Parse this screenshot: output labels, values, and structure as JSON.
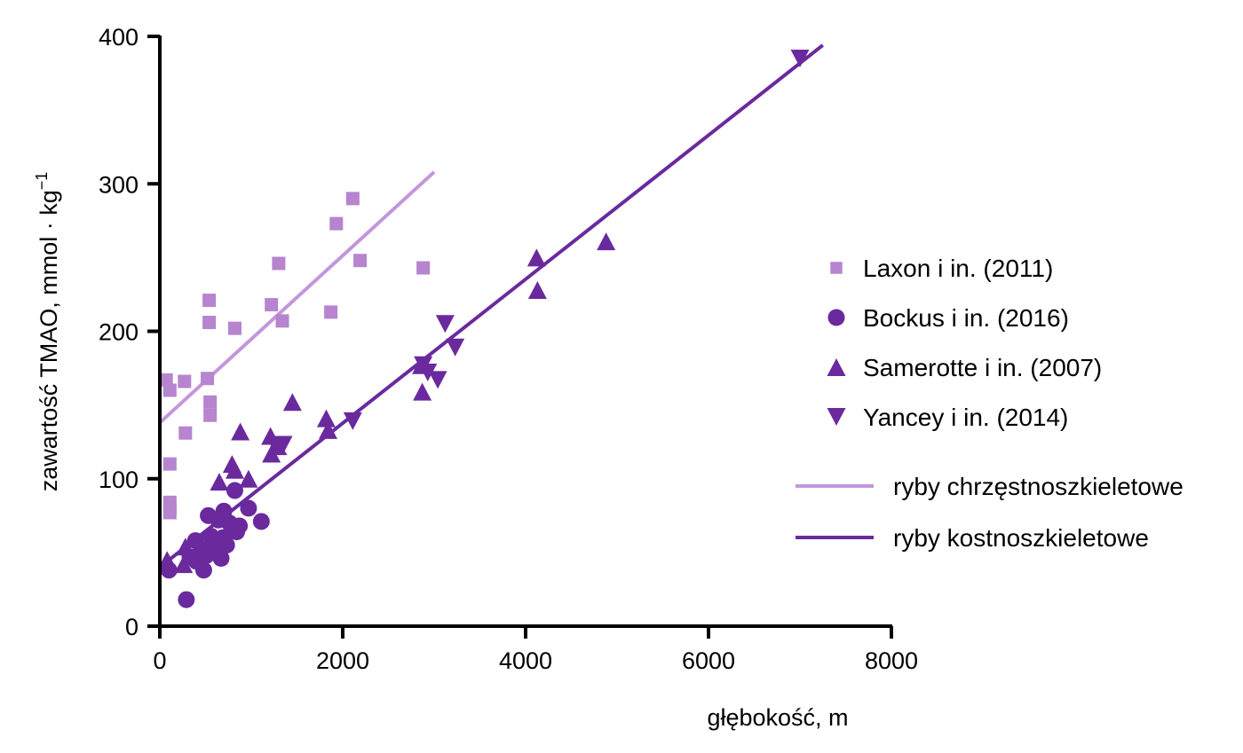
{
  "chart_data": {
    "type": "scatter",
    "xlabel": "głębokość, m",
    "ylabel": {
      "main": "zawartość TMAO, mmol · kg",
      "superscript": "−1"
    },
    "xlim": [
      0,
      8000
    ],
    "ylim": [
      0,
      400
    ],
    "xticks": [
      "0",
      "2000",
      "4000",
      "6000",
      "8000"
    ],
    "yticks": [
      "0",
      "100",
      "200",
      "300",
      "400"
    ],
    "grid": false,
    "legend_position": "right",
    "series": [
      {
        "name": "Laxon i in. (2011)",
        "marker": "square",
        "color": "#b784d0",
        "points": [
          [
            70,
            167
          ],
          [
            110,
            160
          ],
          [
            110,
            110
          ],
          [
            110,
            84
          ],
          [
            110,
            80
          ],
          [
            110,
            77
          ],
          [
            270,
            166
          ],
          [
            280,
            131
          ],
          [
            520,
            168
          ],
          [
            540,
            221
          ],
          [
            540,
            206
          ],
          [
            550,
            152
          ],
          [
            550,
            143
          ],
          [
            820,
            202
          ],
          [
            1220,
            218
          ],
          [
            1300,
            246
          ],
          [
            1340,
            207
          ],
          [
            1870,
            213
          ],
          [
            1930,
            273
          ],
          [
            2110,
            290
          ],
          [
            2190,
            248
          ],
          [
            2880,
            243
          ]
        ]
      },
      {
        "name": "Bockus i in. (2016)",
        "marker": "circle",
        "color": "#6a2a9e",
        "points": [
          [
            100,
            38
          ],
          [
            290,
            18
          ],
          [
            330,
            47
          ],
          [
            390,
            58
          ],
          [
            400,
            44
          ],
          [
            460,
            52
          ],
          [
            480,
            38
          ],
          [
            510,
            48
          ],
          [
            530,
            75
          ],
          [
            560,
            61
          ],
          [
            580,
            55
          ],
          [
            620,
            50
          ],
          [
            640,
            72
          ],
          [
            670,
            46
          ],
          [
            690,
            60
          ],
          [
            700,
            78
          ],
          [
            730,
            55
          ],
          [
            760,
            70
          ],
          [
            800,
            66
          ],
          [
            820,
            92
          ],
          [
            840,
            64
          ],
          [
            870,
            68
          ],
          [
            970,
            80
          ],
          [
            1110,
            71
          ]
        ]
      },
      {
        "name": "Samerotte i in. (2007)",
        "marker": "triangle-up",
        "color": "#6a2a9e",
        "points": [
          [
            80,
            45
          ],
          [
            260,
            42
          ],
          [
            280,
            54
          ],
          [
            650,
            98
          ],
          [
            790,
            110
          ],
          [
            820,
            106
          ],
          [
            880,
            132
          ],
          [
            970,
            100
          ],
          [
            1210,
            129
          ],
          [
            1220,
            117
          ],
          [
            1290,
            122
          ],
          [
            1450,
            152
          ],
          [
            1820,
            141
          ],
          [
            1840,
            133
          ],
          [
            2860,
            177
          ],
          [
            2870,
            159
          ],
          [
            4120,
            250
          ],
          [
            4130,
            228
          ],
          [
            4880,
            261
          ]
        ]
      },
      {
        "name": "Yancey i in. (2014)",
        "marker": "triangle-down",
        "color": "#6a2a9e",
        "points": [
          [
            1260,
            123
          ],
          [
            1350,
            123
          ],
          [
            2110,
            139
          ],
          [
            2880,
            177
          ],
          [
            2930,
            172
          ],
          [
            3040,
            167
          ],
          [
            3120,
            205
          ],
          [
            3230,
            189
          ],
          [
            7000,
            385
          ]
        ]
      }
    ],
    "fit_lines": [
      {
        "name": "ryby chrzęstnoszkieletowe",
        "color": "#c396dc",
        "x": [
          0,
          3000
        ],
        "y": [
          138,
          308
        ]
      },
      {
        "name": "ryby kostnoszkieletowe",
        "color": "#6a2a9e",
        "x": [
          0,
          7250
        ],
        "y": [
          40,
          394
        ]
      }
    ]
  }
}
